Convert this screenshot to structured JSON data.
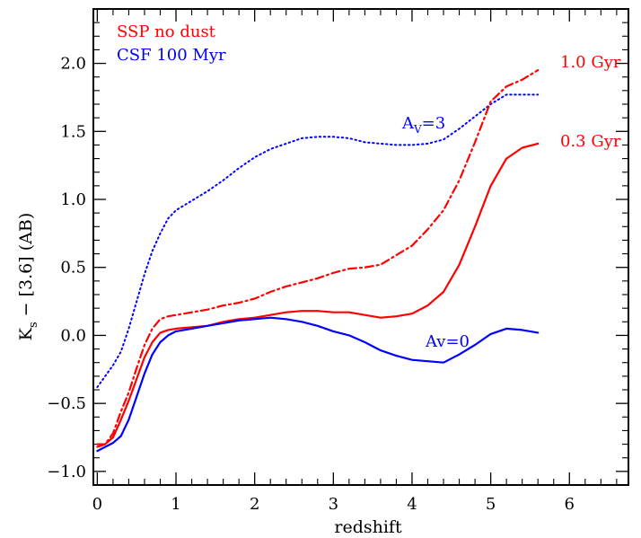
{
  "chart_data": {
    "type": "line",
    "xlabel": "redshift",
    "ylabel": {
      "main": "K",
      "sub": "s",
      "rest": " − [3.6] (AB)"
    },
    "xlim": [
      -0.05,
      6.75
    ],
    "ylim": [
      -1.1,
      2.4
    ],
    "x_ticks": [
      0,
      1,
      2,
      3,
      4,
      5,
      6
    ],
    "y_ticks": [
      -1.0,
      -0.5,
      0.0,
      0.5,
      1.0,
      1.5,
      2.0
    ],
    "y_tick_labels": [
      "−1.0",
      "−0.5",
      "0.0",
      "0.5",
      "1.0",
      "1.5",
      "2.0"
    ],
    "grid": false,
    "legend": {
      "placement": "top-left",
      "entries": [
        {
          "label": "SSP no dust",
          "color": "#ff0000"
        },
        {
          "label": "CSF 100 Myr",
          "color": "#0000ff"
        }
      ]
    },
    "series": [
      {
        "color": "#0000ff",
        "dash": "dotted",
        "x": [
          0.0,
          0.1,
          0.2,
          0.3,
          0.4,
          0.5,
          0.6,
          0.7,
          0.8,
          0.9,
          1.0,
          1.2,
          1.4,
          1.6,
          1.8,
          2.0,
          2.2,
          2.4,
          2.6,
          2.8,
          3.0,
          3.2,
          3.4,
          3.6,
          3.8,
          4.0,
          4.2,
          4.4,
          4.6,
          4.8,
          5.0,
          5.2,
          5.4,
          5.6
        ],
        "y": [
          -0.38,
          -0.3,
          -0.22,
          -0.12,
          0.05,
          0.25,
          0.45,
          0.62,
          0.75,
          0.86,
          0.92,
          0.99,
          1.06,
          1.14,
          1.23,
          1.31,
          1.37,
          1.41,
          1.45,
          1.46,
          1.46,
          1.45,
          1.42,
          1.41,
          1.4,
          1.4,
          1.41,
          1.44,
          1.52,
          1.61,
          1.7,
          1.77,
          1.77,
          1.77
        ]
      },
      {
        "color": "#ff0000",
        "dash": "dashdot",
        "x": [
          0.0,
          0.1,
          0.2,
          0.3,
          0.4,
          0.5,
          0.6,
          0.7,
          0.8,
          0.9,
          1.0,
          1.2,
          1.4,
          1.6,
          1.8,
          2.0,
          2.2,
          2.4,
          2.6,
          2.8,
          3.0,
          3.2,
          3.4,
          3.6,
          3.8,
          4.0,
          4.2,
          4.4,
          4.6,
          4.8,
          5.0,
          5.2,
          5.4,
          5.6
        ],
        "y": [
          -0.82,
          -0.8,
          -0.72,
          -0.56,
          -0.42,
          -0.24,
          -0.07,
          0.05,
          0.12,
          0.14,
          0.15,
          0.17,
          0.19,
          0.22,
          0.24,
          0.27,
          0.32,
          0.36,
          0.39,
          0.42,
          0.46,
          0.49,
          0.5,
          0.52,
          0.59,
          0.66,
          0.78,
          0.92,
          1.14,
          1.42,
          1.72,
          1.83,
          1.88,
          1.95
        ]
      },
      {
        "color": "#ff0000",
        "dash": "solid",
        "x": [
          0.0,
          0.1,
          0.2,
          0.3,
          0.4,
          0.5,
          0.6,
          0.7,
          0.8,
          0.9,
          1.0,
          1.2,
          1.4,
          1.6,
          1.8,
          2.0,
          2.2,
          2.4,
          2.6,
          2.8,
          3.0,
          3.2,
          3.4,
          3.6,
          3.8,
          4.0,
          4.2,
          4.4,
          4.6,
          4.8,
          5.0,
          5.2,
          5.4,
          5.6
        ],
        "y": [
          -0.8,
          -0.8,
          -0.75,
          -0.62,
          -0.48,
          -0.32,
          -0.16,
          -0.05,
          0.02,
          0.04,
          0.05,
          0.06,
          0.07,
          0.1,
          0.12,
          0.13,
          0.15,
          0.17,
          0.18,
          0.18,
          0.17,
          0.17,
          0.15,
          0.13,
          0.14,
          0.16,
          0.22,
          0.32,
          0.52,
          0.8,
          1.1,
          1.3,
          1.38,
          1.41
        ]
      },
      {
        "color": "#0000ff",
        "dash": "solid",
        "x": [
          0.0,
          0.1,
          0.2,
          0.3,
          0.4,
          0.5,
          0.6,
          0.7,
          0.8,
          0.9,
          1.0,
          1.2,
          1.4,
          1.6,
          1.8,
          2.0,
          2.2,
          2.4,
          2.6,
          2.8,
          3.0,
          3.2,
          3.4,
          3.6,
          3.8,
          4.0,
          4.2,
          4.4,
          4.6,
          4.8,
          5.0,
          5.2,
          5.4,
          5.6
        ],
        "y": [
          -0.85,
          -0.82,
          -0.79,
          -0.74,
          -0.62,
          -0.45,
          -0.28,
          -0.14,
          -0.05,
          0.0,
          0.03,
          0.05,
          0.07,
          0.09,
          0.11,
          0.12,
          0.13,
          0.12,
          0.1,
          0.07,
          0.03,
          0.0,
          -0.05,
          -0.11,
          -0.15,
          -0.18,
          -0.19,
          -0.2,
          -0.14,
          -0.07,
          0.01,
          0.05,
          0.04,
          0.02
        ]
      }
    ],
    "annotations": [
      {
        "text": "1.0 Gyr",
        "color": "#ff0000"
      },
      {
        "text": "0.3 Gyr",
        "color": "#ff0000"
      },
      {
        "text_main": "A",
        "text_sub": "V",
        "text_rest": "=3",
        "color": "#0000ff"
      },
      {
        "text": "Av=0",
        "color": "#0000ff"
      }
    ]
  }
}
